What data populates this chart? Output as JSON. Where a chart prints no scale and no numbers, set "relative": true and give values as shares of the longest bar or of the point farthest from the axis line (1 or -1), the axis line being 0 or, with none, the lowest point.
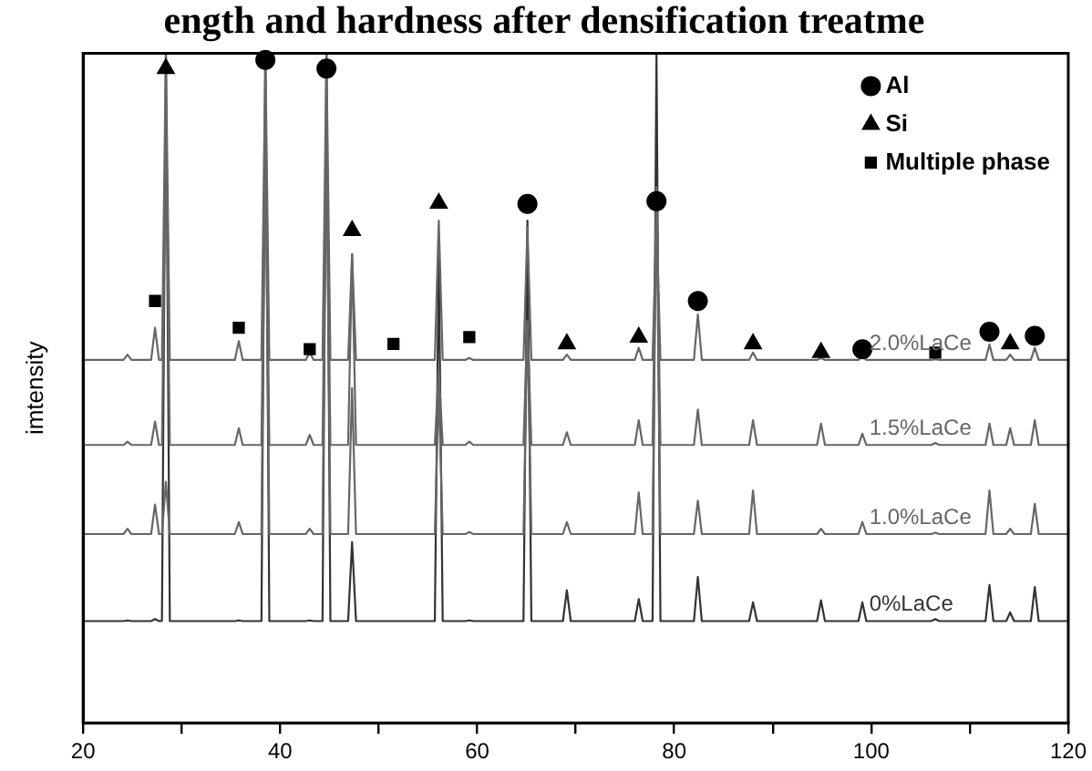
{
  "chart_data": {
    "type": "line",
    "title": "ength and hardness after densification treatme",
    "ylabel": "imtensity",
    "relative": true,
    "xlim": [
      20,
      120
    ],
    "xticks": [
      20,
      {
        "value": 30,
        "label": null
      },
      40,
      {
        "value": 50,
        "label": null
      },
      60,
      {
        "value": 70,
        "label": null
      },
      80,
      {
        "value": 90,
        "label": null
      },
      100,
      {
        "value": 110,
        "label": null
      },
      120
    ],
    "grid": false,
    "legend": "top right",
    "marker": "none",
    "line_style": "solid",
    "series": [
      {
        "name": "2.0%LaCe",
        "color": "#666666",
        "x": [
          20,
          24.1,
          24.5,
          24.9,
          26.9,
          27.3,
          27.7,
          28.0,
          28.4,
          28.8,
          35.4,
          35.8,
          36.2,
          38.1,
          38.5,
          38.9,
          42.6,
          43.0,
          43.4,
          44.3,
          44.7,
          45.1,
          46.9,
          47.3,
          47.7,
          55.7,
          56.1,
          56.5,
          58.8,
          59.2,
          59.6,
          64.7,
          65.1,
          65.5,
          68.7,
          69.1,
          69.5,
          76.0,
          76.4,
          76.8,
          77.8,
          78.2,
          78.6,
          82.0,
          82.4,
          82.8,
          87.6,
          88.0,
          88.4,
          94.5,
          94.9,
          95.3,
          98.7,
          99.1,
          99.5,
          106.1,
          106.5,
          106.9,
          111.6,
          112.0,
          112.4,
          113.7,
          114.1,
          114.5,
          116.2,
          116.6,
          117.0,
          120
        ],
        "values": [
          0.542,
          0.542,
          0.55,
          0.542,
          0.542,
          0.59,
          0.542,
          0.542,
          1,
          0.542,
          0.542,
          0.57,
          0.542,
          0.542,
          1,
          0.542,
          0.542,
          0.553,
          0.542,
          0.542,
          1,
          0.542,
          0.542,
          0.7,
          0.542,
          0.542,
          0.75,
          0.542,
          0.542,
          0.545,
          0.542,
          0.542,
          0.74,
          0.542,
          0.542,
          0.55,
          0.542,
          0.542,
          0.56,
          0.542,
          0.542,
          0.76,
          0.542,
          0.542,
          0.61,
          0.542,
          0.542,
          0.553,
          0.542,
          0.542,
          0.545,
          0.542,
          0.542,
          0.548,
          0.542,
          0.542,
          0.543,
          0.542,
          0.542,
          0.565,
          0.542,
          0.542,
          0.55,
          0.542,
          0.542,
          0.56,
          0.542,
          0.542
        ]
      },
      {
        "name": "1.5%LaCe",
        "color": "#666666",
        "x": [
          20,
          24.1,
          24.5,
          24.9,
          26.9,
          27.3,
          27.7,
          28.0,
          28.4,
          28.8,
          35.4,
          35.8,
          36.2,
          38.1,
          38.5,
          38.9,
          42.6,
          43.0,
          43.4,
          44.3,
          44.7,
          45.1,
          46.9,
          47.3,
          47.7,
          55.7,
          56.1,
          56.5,
          58.8,
          59.2,
          59.6,
          64.7,
          65.1,
          65.5,
          68.7,
          69.1,
          69.5,
          76.0,
          76.4,
          76.8,
          77.8,
          78.2,
          78.6,
          82.0,
          82.4,
          82.8,
          87.6,
          88.0,
          88.4,
          94.5,
          94.9,
          95.3,
          98.7,
          99.1,
          99.5,
          106.1,
          106.5,
          106.9,
          111.6,
          112.0,
          112.4,
          113.7,
          114.1,
          114.5,
          116.2,
          116.6,
          117.0,
          120
        ],
        "values": [
          0.415,
          0.415,
          0.42,
          0.415,
          0.415,
          0.45,
          0.415,
          0.415,
          0.9,
          0.415,
          0.415,
          0.44,
          0.415,
          0.415,
          0.9,
          0.415,
          0.415,
          0.43,
          0.415,
          0.415,
          0.9,
          0.415,
          0.415,
          0.7,
          0.415,
          0.415,
          0.53,
          0.415,
          0.415,
          0.42,
          0.415,
          0.415,
          0.6,
          0.415,
          0.415,
          0.434,
          0.415,
          0.415,
          0.452,
          0.415,
          0.415,
          0.8,
          0.415,
          0.415,
          0.468,
          0.415,
          0.415,
          0.452,
          0.415,
          0.415,
          0.447,
          0.415,
          0.415,
          0.432,
          0.415,
          0.415,
          0.418,
          0.415,
          0.415,
          0.447,
          0.415,
          0.415,
          0.44,
          0.415,
          0.415,
          0.452,
          0.415,
          0.415
        ]
      },
      {
        "name": "1.0%LaCe",
        "color": "#666666",
        "x": [
          20,
          24.1,
          24.5,
          24.9,
          26.9,
          27.3,
          27.7,
          28.0,
          28.4,
          28.8,
          35.4,
          35.8,
          36.2,
          38.1,
          38.5,
          38.9,
          42.6,
          43.0,
          43.4,
          44.3,
          44.7,
          45.1,
          46.9,
          47.3,
          47.7,
          55.7,
          56.1,
          56.5,
          58.8,
          59.2,
          59.6,
          64.7,
          65.1,
          65.5,
          68.7,
          69.1,
          69.5,
          76.0,
          76.4,
          76.8,
          77.8,
          78.2,
          78.6,
          82.0,
          82.4,
          82.8,
          87.6,
          88.0,
          88.4,
          94.5,
          94.9,
          95.3,
          98.7,
          99.1,
          99.5,
          106.1,
          106.5,
          106.9,
          111.6,
          112.0,
          112.4,
          113.7,
          114.1,
          114.5,
          116.2,
          116.6,
          117.0,
          120
        ],
        "values": [
          0.282,
          0.282,
          0.29,
          0.282,
          0.282,
          0.326,
          0.282,
          0.282,
          0.36,
          0.282,
          0.282,
          0.3,
          0.282,
          0.282,
          0.9,
          0.282,
          0.282,
          0.29,
          0.282,
          0.282,
          0.9,
          0.282,
          0.282,
          0.5,
          0.282,
          0.282,
          0.5,
          0.282,
          0.282,
          0.285,
          0.282,
          0.282,
          0.6,
          0.282,
          0.282,
          0.3,
          0.282,
          0.282,
          0.344,
          0.282,
          0.282,
          0.8,
          0.282,
          0.282,
          0.332,
          0.282,
          0.282,
          0.347,
          0.282,
          0.282,
          0.29,
          0.282,
          0.282,
          0.3,
          0.282,
          0.282,
          0.284,
          0.282,
          0.282,
          0.347,
          0.282,
          0.282,
          0.29,
          0.282,
          0.282,
          0.327,
          0.282,
          0.282
        ]
      },
      {
        "name": "0%LaCe",
        "color": "#333333",
        "x": [
          20,
          24.1,
          24.5,
          24.9,
          26.9,
          27.3,
          27.7,
          28.0,
          28.4,
          28.8,
          35.4,
          35.8,
          36.2,
          38.1,
          38.5,
          38.9,
          42.6,
          43.0,
          43.4,
          44.3,
          44.7,
          45.1,
          46.9,
          47.3,
          47.7,
          55.7,
          56.1,
          56.5,
          58.8,
          59.2,
          59.6,
          64.7,
          65.1,
          65.5,
          68.7,
          69.1,
          69.5,
          76.0,
          76.4,
          76.8,
          77.8,
          78.2,
          78.6,
          82.0,
          82.4,
          82.8,
          87.6,
          88.0,
          88.4,
          94.5,
          94.9,
          95.3,
          98.7,
          99.1,
          99.5,
          106.1,
          106.5,
          106.9,
          111.6,
          112.0,
          112.4,
          113.7,
          114.1,
          114.5,
          116.2,
          116.6,
          117.0,
          120
        ],
        "values": [
          0.152,
          0.152,
          0.153,
          0.152,
          0.152,
          0.155,
          0.152,
          0.152,
          1,
          0.152,
          0.152,
          0.153,
          0.152,
          0.152,
          1,
          0.152,
          0.152,
          0.153,
          0.152,
          0.152,
          1,
          0.152,
          0.152,
          0.27,
          0.152,
          0.152,
          0.7,
          0.152,
          0.152,
          0.153,
          0.152,
          0.152,
          0.75,
          0.152,
          0.152,
          0.198,
          0.152,
          0.152,
          0.185,
          0.152,
          0.152,
          1,
          0.152,
          0.152,
          0.218,
          0.152,
          0.152,
          0.18,
          0.152,
          0.152,
          0.183,
          0.152,
          0.152,
          0.18,
          0.152,
          0.152,
          0.155,
          0.152,
          0.152,
          0.206,
          0.152,
          0.152,
          0.165,
          0.152,
          0.152,
          0.203,
          0.152,
          0.152
        ]
      },
      {
        "type": "scatter",
        "name": "Al",
        "marker": "circle",
        "color": "#000000",
        "x": [
          38.5,
          44.7,
          65.1,
          78.2,
          82.4,
          99.1,
          112.0,
          116.6
        ],
        "values": [
          0.99,
          0.977,
          0.775,
          0.779,
          0.63,
          0.558,
          0.584,
          0.578
        ]
      },
      {
        "type": "scatter",
        "name": "Si",
        "marker": "triangle",
        "color": "#000000",
        "x": [
          28.4,
          47.3,
          56.1,
          69.1,
          76.4,
          88.0,
          94.9,
          114.1
        ],
        "values": [
          0.977,
          0.735,
          0.776,
          0.566,
          0.576,
          0.566,
          0.553,
          0.566
        ]
      },
      {
        "type": "scatter",
        "name": "Multiple phase",
        "marker": "square",
        "color": "#000000",
        "x": [
          27.3,
          35.8,
          43.0,
          51.5,
          59.2,
          106.5
        ],
        "values": [
          0.63,
          0.59,
          0.558,
          0.566,
          0.576,
          0.553
        ]
      }
    ]
  }
}
